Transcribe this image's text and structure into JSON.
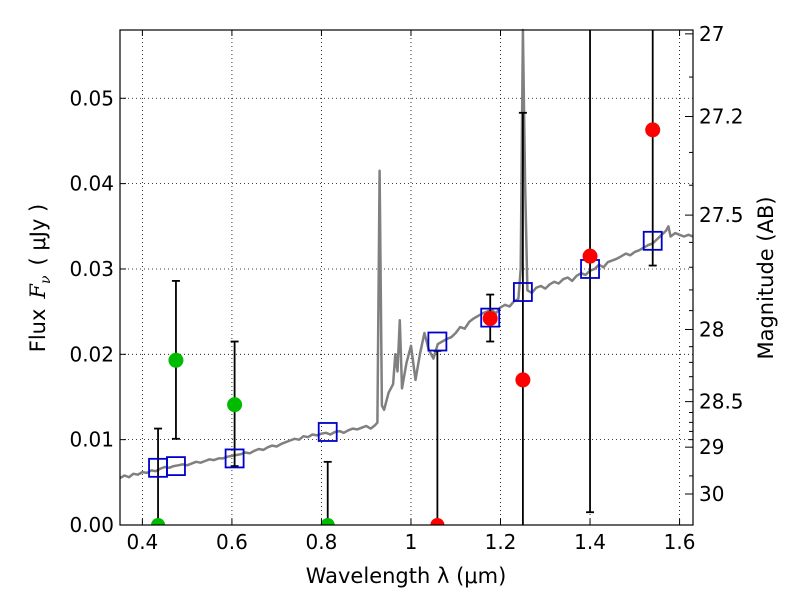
{
  "chart_data": {
    "type": "scatter",
    "xlabel": "Wavelength  λ (μm)",
    "ylabel": "Flux  F_ν  ( μJy )",
    "ylabel_parts": {
      "prefix": "Flux",
      "symbol": "F",
      "subscript": "ν",
      "unit": "( μJy )"
    },
    "y2label": "Magnitude (AB)",
    "xlim": [
      0.35,
      1.63
    ],
    "ylim": [
      0.0,
      0.058
    ],
    "grid": true,
    "x_ticks": [
      0.4,
      0.6,
      0.8,
      1.0,
      1.2,
      1.4,
      1.6
    ],
    "x_tick_labels": [
      "0.4",
      "0.6",
      "0.8",
      "1",
      "1.2",
      "1.4",
      "1.6"
    ],
    "y_ticks": [
      0.0,
      0.01,
      0.02,
      0.03,
      0.04,
      0.05
    ],
    "y_tick_labels": [
      "0.00",
      "0.01",
      "0.02",
      "0.03",
      "0.04",
      "0.05"
    ],
    "mag_ticks": [
      27,
      27.2,
      27.5,
      28,
      28.5,
      29,
      30
    ],
    "mag_tick_labels": [
      "27",
      "27.2",
      "27.5",
      "28",
      "28.5",
      "29",
      "30"
    ],
    "mag_minor_ticks": [
      27.1,
      27.3,
      27.4,
      27.6,
      27.7,
      27.8,
      27.9,
      28.1,
      28.2,
      28.3,
      28.4,
      28.6,
      28.7,
      28.8,
      28.9,
      29.5
    ],
    "colors": {
      "template": "#808080",
      "model_box": "#0000cc",
      "detection": "#00bb00",
      "upper": "#ff0000",
      "errorbar": "#000000"
    },
    "template_spectrum": [
      [
        0.35,
        0.0055
      ],
      [
        0.36,
        0.0058
      ],
      [
        0.37,
        0.0056
      ],
      [
        0.38,
        0.006
      ],
      [
        0.39,
        0.0059
      ],
      [
        0.4,
        0.0062
      ],
      [
        0.41,
        0.0061
      ],
      [
        0.42,
        0.0064
      ],
      [
        0.43,
        0.0063
      ],
      [
        0.44,
        0.0066
      ],
      [
        0.45,
        0.0068
      ],
      [
        0.46,
        0.0067
      ],
      [
        0.47,
        0.0069
      ],
      [
        0.48,
        0.007
      ],
      [
        0.49,
        0.0071
      ],
      [
        0.5,
        0.007
      ],
      [
        0.51,
        0.0072
      ],
      [
        0.52,
        0.0074
      ],
      [
        0.53,
        0.0073
      ],
      [
        0.54,
        0.0075
      ],
      [
        0.55,
        0.0077
      ],
      [
        0.56,
        0.0076
      ],
      [
        0.57,
        0.0078
      ],
      [
        0.58,
        0.0078
      ],
      [
        0.59,
        0.008
      ],
      [
        0.6,
        0.0081
      ],
      [
        0.61,
        0.0082
      ],
      [
        0.62,
        0.0083
      ],
      [
        0.63,
        0.0085
      ],
      [
        0.64,
        0.0084
      ],
      [
        0.65,
        0.0087
      ],
      [
        0.66,
        0.0089
      ],
      [
        0.67,
        0.0088
      ],
      [
        0.68,
        0.0091
      ],
      [
        0.69,
        0.0093
      ],
      [
        0.7,
        0.0092
      ],
      [
        0.71,
        0.0095
      ],
      [
        0.72,
        0.0097
      ],
      [
        0.73,
        0.0099
      ],
      [
        0.74,
        0.0101
      ],
      [
        0.75,
        0.01
      ],
      [
        0.76,
        0.0104
      ],
      [
        0.77,
        0.0103
      ],
      [
        0.78,
        0.0106
      ],
      [
        0.79,
        0.0105
      ],
      [
        0.8,
        0.0107
      ],
      [
        0.81,
        0.0108
      ],
      [
        0.82,
        0.0106
      ],
      [
        0.83,
        0.0109
      ],
      [
        0.84,
        0.011
      ],
      [
        0.85,
        0.0108
      ],
      [
        0.86,
        0.0111
      ],
      [
        0.87,
        0.0113
      ],
      [
        0.88,
        0.0112
      ],
      [
        0.89,
        0.0114
      ],
      [
        0.9,
        0.0116
      ],
      [
        0.91,
        0.0113
      ],
      [
        0.92,
        0.0117
      ],
      [
        0.925,
        0.012
      ],
      [
        0.93,
        0.0415
      ],
      [
        0.935,
        0.014
      ],
      [
        0.94,
        0.0135
      ],
      [
        0.95,
        0.0155
      ],
      [
        0.96,
        0.0165
      ],
      [
        0.965,
        0.02
      ],
      [
        0.97,
        0.018
      ],
      [
        0.975,
        0.024
      ],
      [
        0.98,
        0.016
      ],
      [
        0.99,
        0.019
      ],
      [
        1.0,
        0.021
      ],
      [
        1.01,
        0.017
      ],
      [
        1.02,
        0.02
      ],
      [
        1.03,
        0.0225
      ],
      [
        1.04,
        0.0205
      ],
      [
        1.05,
        0.0195
      ],
      [
        1.06,
        0.0212
      ],
      [
        1.07,
        0.0215
      ],
      [
        1.08,
        0.0218
      ],
      [
        1.09,
        0.022
      ],
      [
        1.1,
        0.0225
      ],
      [
        1.11,
        0.0232
      ],
      [
        1.12,
        0.023
      ],
      [
        1.13,
        0.0238
      ],
      [
        1.14,
        0.0242
      ],
      [
        1.15,
        0.0245
      ],
      [
        1.16,
        0.0248
      ],
      [
        1.17,
        0.025
      ],
      [
        1.18,
        0.0252
      ],
      [
        1.19,
        0.0248
      ],
      [
        1.2,
        0.0255
      ],
      [
        1.21,
        0.0258
      ],
      [
        1.22,
        0.0256
      ],
      [
        1.23,
        0.0262
      ],
      [
        1.24,
        0.0265
      ],
      [
        1.245,
        0.03
      ],
      [
        1.25,
        0.058
      ],
      [
        1.255,
        0.04
      ],
      [
        1.26,
        0.0275
      ],
      [
        1.27,
        0.0272
      ],
      [
        1.28,
        0.0278
      ],
      [
        1.29,
        0.028
      ],
      [
        1.3,
        0.0277
      ],
      [
        1.31,
        0.0282
      ],
      [
        1.32,
        0.0285
      ],
      [
        1.33,
        0.0283
      ],
      [
        1.34,
        0.0288
      ],
      [
        1.35,
        0.029
      ],
      [
        1.36,
        0.0286
      ],
      [
        1.37,
        0.0292
      ],
      [
        1.38,
        0.0295
      ],
      [
        1.39,
        0.0293
      ],
      [
        1.4,
        0.0298
      ],
      [
        1.41,
        0.03
      ],
      [
        1.42,
        0.0305
      ],
      [
        1.43,
        0.0302
      ],
      [
        1.44,
        0.0308
      ],
      [
        1.45,
        0.031
      ],
      [
        1.46,
        0.0312
      ],
      [
        1.47,
        0.0315
      ],
      [
        1.48,
        0.0318
      ],
      [
        1.49,
        0.0316
      ],
      [
        1.5,
        0.032
      ],
      [
        1.51,
        0.0322
      ],
      [
        1.52,
        0.0325
      ],
      [
        1.53,
        0.0328
      ],
      [
        1.54,
        0.033
      ],
      [
        1.55,
        0.0335
      ],
      [
        1.56,
        0.034
      ],
      [
        1.57,
        0.0345
      ],
      [
        1.575,
        0.035
      ],
      [
        1.58,
        0.0338
      ],
      [
        1.59,
        0.0342
      ],
      [
        1.6,
        0.034
      ],
      [
        1.61,
        0.0338
      ],
      [
        1.62,
        0.034
      ],
      [
        1.63,
        0.0338
      ]
    ],
    "model_fluxes": [
      {
        "x": 0.435,
        "y": 0.0067
      },
      {
        "x": 0.475,
        "y": 0.0069
      },
      {
        "x": 0.606,
        "y": 0.0078
      },
      {
        "x": 0.814,
        "y": 0.0109
      },
      {
        "x": 1.059,
        "y": 0.0215
      },
      {
        "x": 1.177,
        "y": 0.0243
      },
      {
        "x": 1.25,
        "y": 0.0273
      },
      {
        "x": 1.4,
        "y": 0.03
      },
      {
        "x": 1.54,
        "y": 0.0333
      }
    ],
    "observed_detections": [
      {
        "x": 0.435,
        "y": 0.0,
        "err_low": 0.0,
        "err_high": 0.0113
      },
      {
        "x": 0.475,
        "y": 0.0193,
        "err_low": 0.0101,
        "err_high": 0.0286
      },
      {
        "x": 0.606,
        "y": 0.0141,
        "err_low": 0.0069,
        "err_high": 0.0215
      },
      {
        "x": 0.814,
        "y": 0.0,
        "err_low": 0.0,
        "err_high": 0.0074
      }
    ],
    "observed_other": [
      {
        "x": 1.059,
        "y": 0.0,
        "err_low": 0.0,
        "err_high": 0.0204
      },
      {
        "x": 1.177,
        "y": 0.0242,
        "err_low": 0.0215,
        "err_high": 0.027
      },
      {
        "x": 1.25,
        "y": 0.017,
        "err_low": 0.0,
        "err_high": 0.0483
      },
      {
        "x": 1.4,
        "y": 0.0315,
        "err_low": 0.0015,
        "err_high": 0.058
      },
      {
        "x": 1.54,
        "y": 0.0463,
        "err_low": 0.0304,
        "err_high": 0.058
      }
    ]
  }
}
